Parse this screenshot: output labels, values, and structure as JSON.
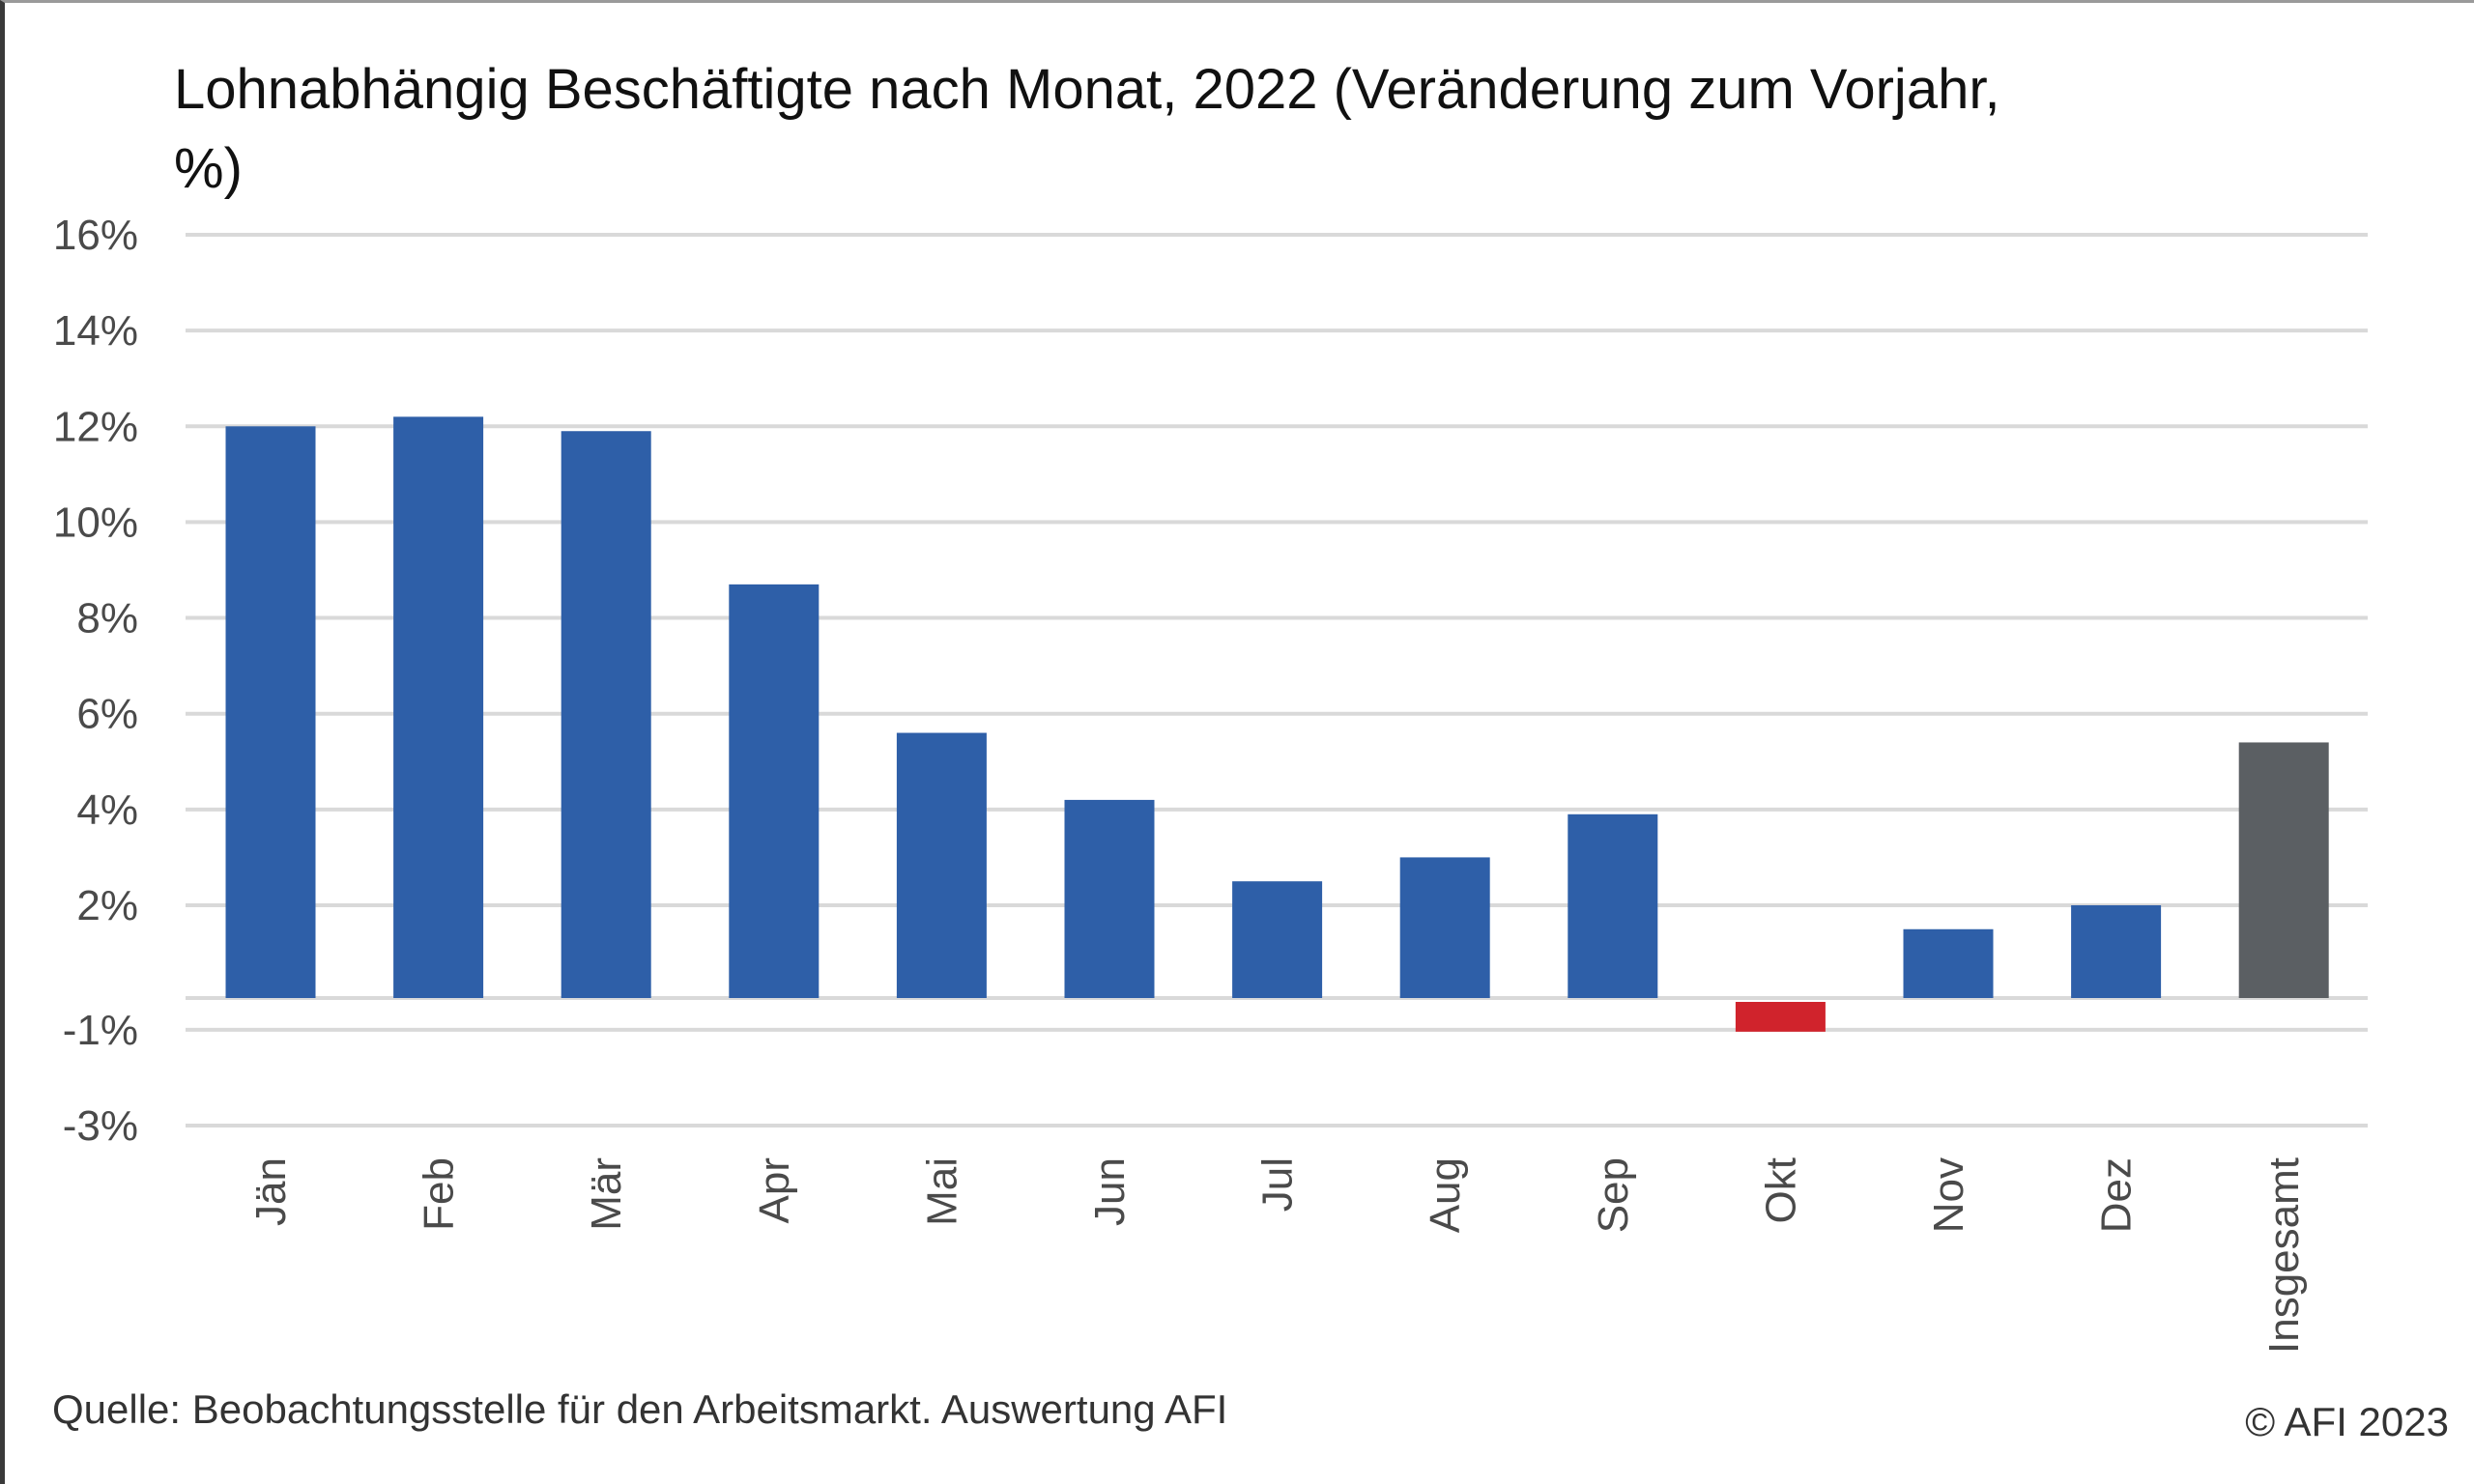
{
  "chart_data": {
    "type": "bar",
    "title": "Lohnabhängig Beschäftigte nach Monat, 2022 (Veränderung zum Vorjahr, %)",
    "xlabel": "",
    "ylabel": "",
    "categories": [
      "Jän",
      "Feb",
      "Mär",
      "Apr",
      "Mai",
      "Jun",
      "Jul",
      "Aug",
      "Sep",
      "Okt",
      "Nov",
      "Dez",
      "Insgesamt"
    ],
    "values": [
      12.0,
      12.2,
      11.9,
      8.7,
      5.6,
      4.2,
      2.5,
      3.0,
      3.9,
      -0.6,
      1.5,
      2.0,
      5.4
    ],
    "value_unit": "%",
    "bar_colors": [
      "#2e5fa8",
      "#2e5fa8",
      "#2e5fa8",
      "#2e5fa8",
      "#2e5fa8",
      "#2e5fa8",
      "#2e5fa8",
      "#2e5fa8",
      "#2e5fa8",
      "#d0232c",
      "#2e5fa8",
      "#2e5fa8",
      "#5b5f63"
    ],
    "y_ticks": [
      {
        "label": "16%",
        "value": 16
      },
      {
        "label": "14%",
        "value": 14
      },
      {
        "label": "12%",
        "value": 12
      },
      {
        "label": "10%",
        "value": 10
      },
      {
        "label": "8%",
        "value": 8
      },
      {
        "label": "6%",
        "value": 6
      },
      {
        "label": "4%",
        "value": 4
      },
      {
        "label": "2%",
        "value": 2
      },
      {
        "label": "-1%",
        "value": -0.6
      },
      {
        "label": "-3%",
        "value": -2.6
      }
    ],
    "ylim": [
      -2.6,
      16
    ],
    "grid": true,
    "legend": "none"
  },
  "footer": {
    "source": "Quelle: Beobachtungsstelle für den Arbeitsmarkt. Auswertung AFI",
    "copyright": "© AFI 2023"
  },
  "colors": {
    "grid": "#d9d9d9",
    "text": "#4a4a4a"
  }
}
